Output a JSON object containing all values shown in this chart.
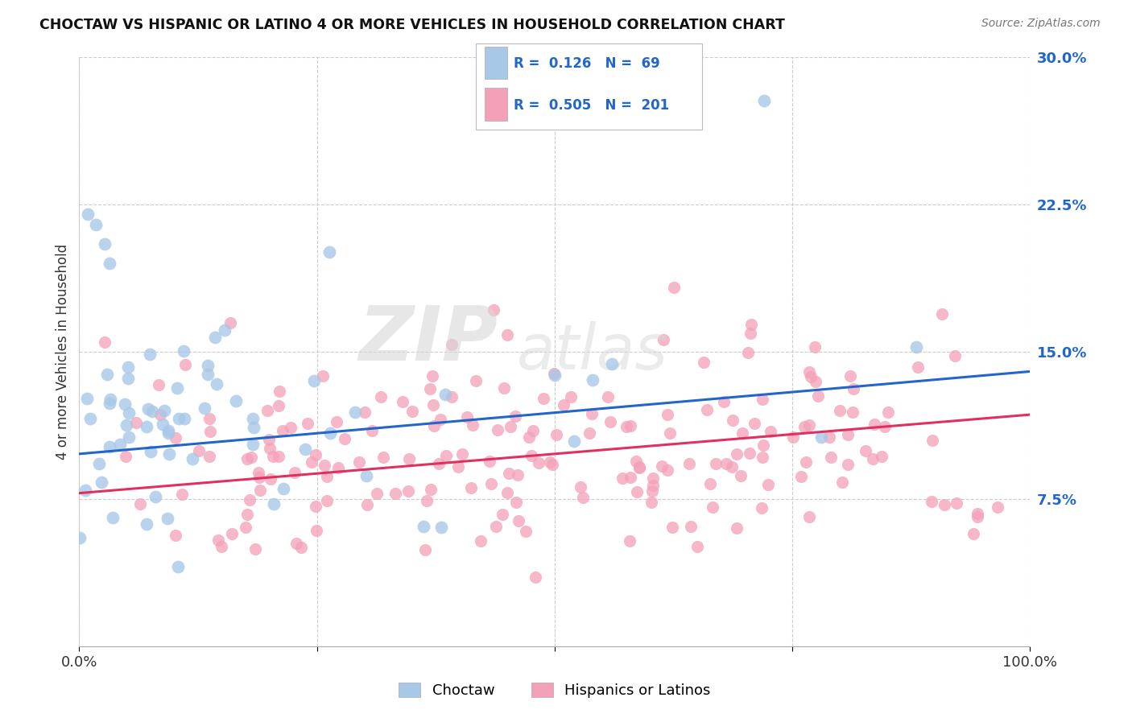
{
  "title": "CHOCTAW VS HISPANIC OR LATINO 4 OR MORE VEHICLES IN HOUSEHOLD CORRELATION CHART",
  "source": "Source: ZipAtlas.com",
  "ylabel": "4 or more Vehicles in Household",
  "choctaw_R": 0.126,
  "choctaw_N": 69,
  "hispanic_R": 0.505,
  "hispanic_N": 201,
  "choctaw_color": "#a8c8e8",
  "hispanic_color": "#f4a0b8",
  "choctaw_line_color": "#2266cc",
  "hispanic_line_color": "#e03060",
  "background_color": "#ffffff",
  "grid_color": "#cccccc",
  "ytick_labels": [
    "",
    "7.5%",
    "15.0%",
    "22.5%",
    "30.0%"
  ],
  "xtick_labels": [
    "0.0%",
    "",
    "",
    "",
    "100.0%"
  ],
  "watermark_zip": "ZIP",
  "watermark_atlas": "atlas"
}
